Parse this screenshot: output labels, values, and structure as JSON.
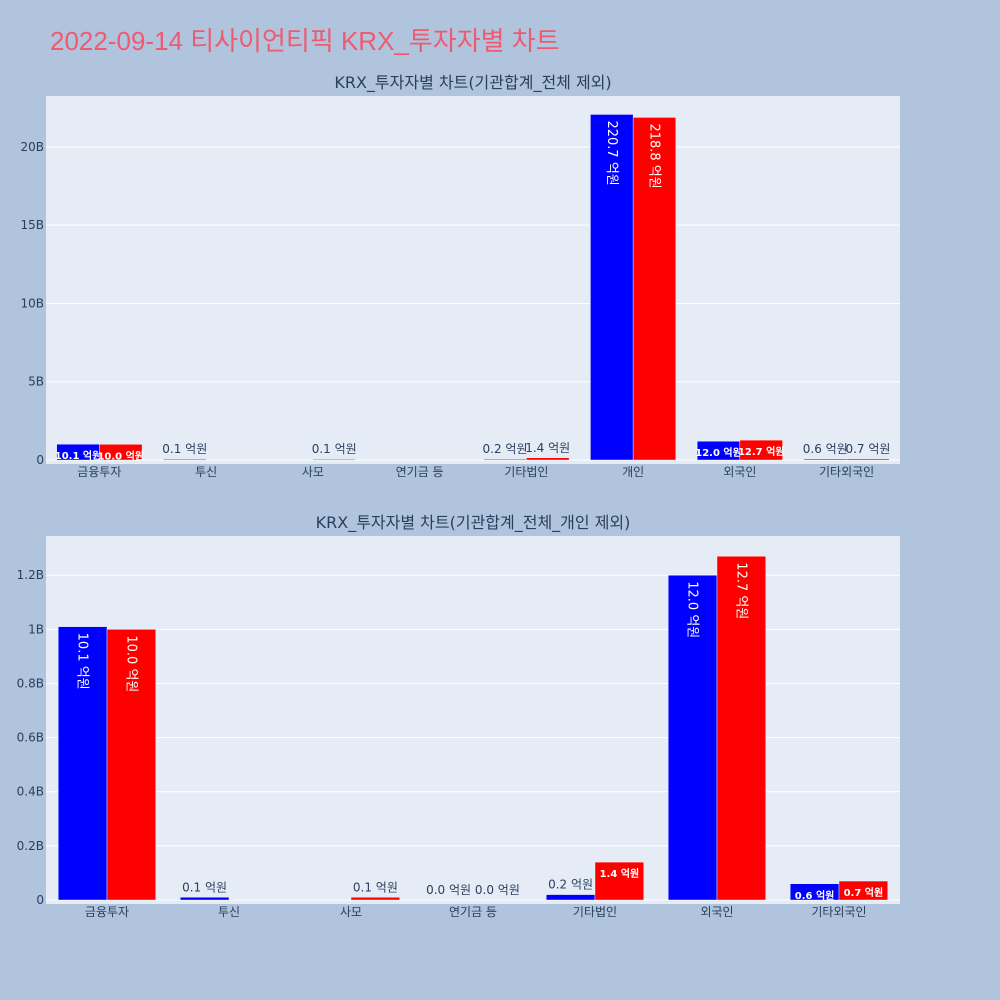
{
  "page_title": "2022-09-14 티사이언티픽 KRX_투자자별 차트",
  "colors": {
    "buy": "#0000ff",
    "sell": "#ff0000",
    "plot_bg": "#e5ecf6",
    "paper_bg": "#b0c4de",
    "title": "#ef5a6f",
    "text": "#2a3f5f"
  },
  "chart_data": [
    {
      "type": "bar",
      "title": "KRX_투자자별 차트(기관합계_전체 제외)",
      "categories": [
        "금융투자",
        "투신",
        "사모",
        "연기금 등",
        "기타법인",
        "개인",
        "외국인",
        "기타외국인"
      ],
      "yticks": [
        "0",
        "5B",
        "10B",
        "15B",
        "20B"
      ],
      "ytick_values": [
        0,
        5000000000,
        10000000000,
        15000000000,
        20000000000
      ],
      "ylim": [
        0,
        23250000000
      ],
      "series": [
        {
          "color": "#0000ff",
          "values": [
            1010000000,
            10000000,
            0,
            0,
            20000000,
            22070000000,
            1200000000,
            60000000
          ],
          "labels": [
            "10.1 억원",
            "0.1 억원",
            "",
            "",
            "0.2 억원",
            "220.7 억원",
            "12.0 억원",
            "0.6 억원"
          ]
        },
        {
          "color": "#ff0000",
          "values": [
            1000000000,
            0,
            10000000,
            0,
            140000000,
            21880000000,
            1270000000,
            70000000
          ],
          "labels": [
            "10.0 억원",
            "",
            "0.1 억원",
            "",
            "1.4 억원",
            "218.8 억원",
            "12.7 억원",
            "0.7 억원"
          ]
        }
      ]
    },
    {
      "type": "bar",
      "title": "KRX_투자자별 차트(기관합계_전체_개인 제외)",
      "categories": [
        "금융투자",
        "투신",
        "사모",
        "연기금 등",
        "기타법인",
        "외국인",
        "기타외국인"
      ],
      "yticks": [
        "0",
        "0.2B",
        "0.4B",
        "0.6B",
        "0.8B",
        "1B",
        "1.2B"
      ],
      "ytick_values": [
        0,
        200000000,
        400000000,
        600000000,
        800000000,
        1000000000,
        1200000000
      ],
      "ylim": [
        0,
        1345000000
      ],
      "series": [
        {
          "color": "#0000ff",
          "values": [
            1010000000,
            10000000,
            0,
            0,
            20000000,
            1200000000,
            60000000
          ],
          "labels": [
            "10.1 억원",
            "0.1 억원",
            "",
            "0.0 억원",
            "0.2 억원",
            "12.0 억원",
            "0.6 억원"
          ]
        },
        {
          "color": "#ff0000",
          "values": [
            1000000000,
            0,
            10000000,
            0,
            140000000,
            1270000000,
            70000000
          ],
          "labels": [
            "10.0 억원",
            "",
            "0.1 억원",
            "0.0 억원",
            "1.4 억원",
            "12.7 억원",
            "0.7 억원"
          ]
        }
      ]
    }
  ]
}
